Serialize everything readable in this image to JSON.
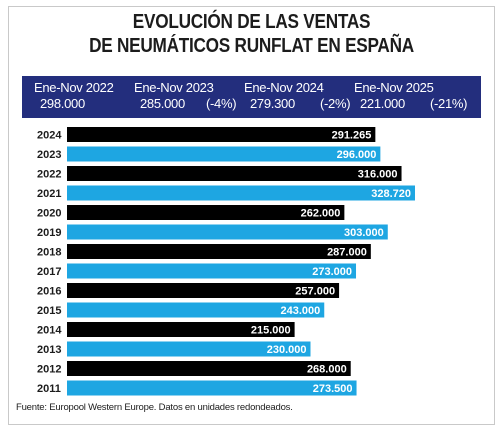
{
  "title_line1": "EVOLUCIÓN DE LAS VENTAS",
  "title_line2": "DE NEUMÁTICOS RUNFLAT EN ESPAÑA",
  "periods": [
    {
      "label": "Ene-Nov 2022",
      "value": "298.000",
      "change": ""
    },
    {
      "label": "Ene-Nov 2023",
      "value": "285.000",
      "change": "(-4%)"
    },
    {
      "label": "Ene-Nov 2024",
      "value": "279.300",
      "change": "(-2%)"
    },
    {
      "label": "Ene-Nov 2025",
      "value": "221.000",
      "change": "(-21%)"
    }
  ],
  "source": "Fuente: Europool Western Europe. Datos en unidades redondeados.",
  "colors": {
    "band": "#232e7d",
    "bar_black": "#000000",
    "bar_blue": "#1ea6e2"
  },
  "chart_data": {
    "type": "bar",
    "orientation": "horizontal",
    "categories": [
      "2024",
      "2023",
      "2022",
      "2021",
      "2020",
      "2019",
      "2018",
      "2017",
      "2016",
      "2015",
      "2014",
      "2013",
      "2012",
      "2011"
    ],
    "values": [
      291265,
      296000,
      316000,
      328720,
      262000,
      303000,
      287000,
      273000,
      257000,
      243000,
      215000,
      230000,
      268000,
      273500
    ],
    "value_labels": [
      "291.265",
      "296.000",
      "316.000",
      "328.720",
      "262.000",
      "303.000",
      "287.000",
      "273.000",
      "257.000",
      "243.000",
      "215.000",
      "230.000",
      "268.000",
      "273.500"
    ],
    "xlim": [
      0,
      328720
    ],
    "grid": false,
    "legend": "none"
  }
}
